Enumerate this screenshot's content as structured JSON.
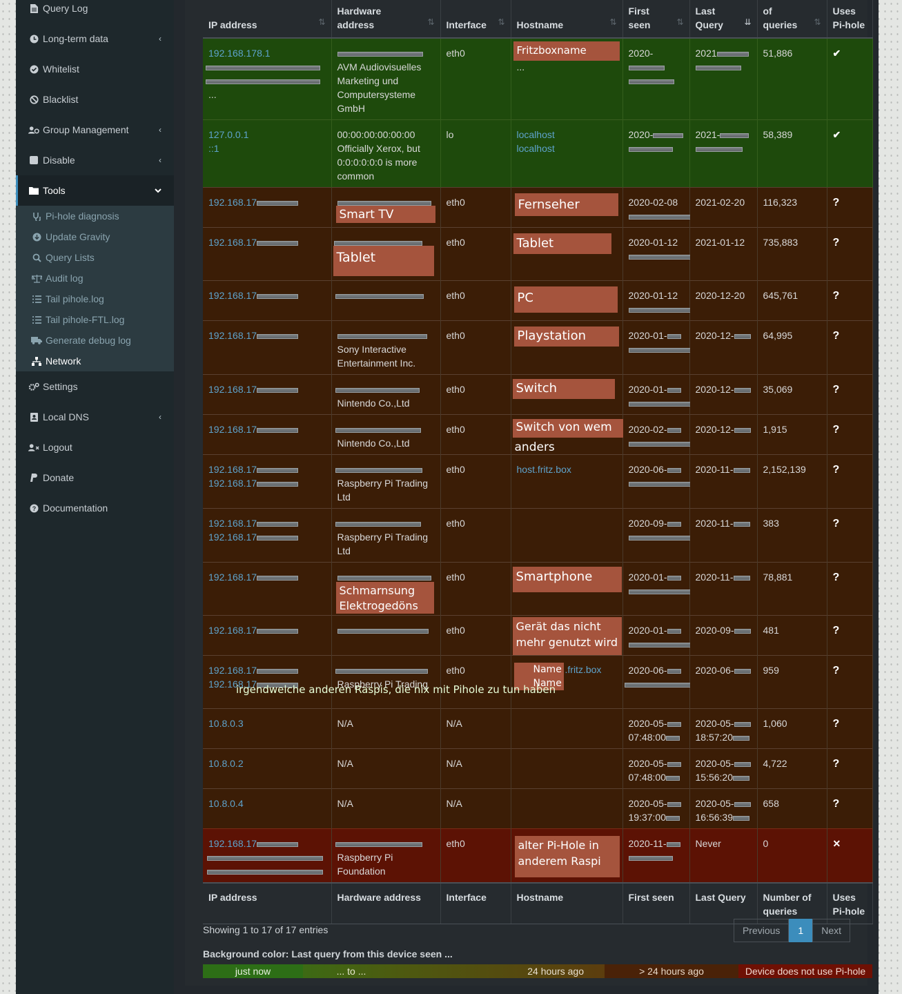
{
  "sidebar": {
    "items": [
      {
        "label": "Query Log",
        "icon": "file-icon"
      },
      {
        "label": "Long-term data",
        "icon": "history-icon",
        "chevron": "‹"
      },
      {
        "label": "Whitelist",
        "icon": "check-circle-icon"
      },
      {
        "label": "Blacklist",
        "icon": "ban-icon"
      },
      {
        "label": "Group Management",
        "icon": "users-cog-icon",
        "chevron": "‹"
      },
      {
        "label": "Disable",
        "icon": "stop-icon",
        "chevron": "‹"
      },
      {
        "label": "Tools",
        "icon": "folder-open-icon",
        "chevron": "⌄"
      },
      {
        "label": "Settings",
        "icon": "cogs-icon"
      },
      {
        "label": "Local DNS",
        "icon": "address-book-icon",
        "chevron": "‹"
      },
      {
        "label": "Logout",
        "icon": "user-times-icon"
      },
      {
        "label": "Donate",
        "icon": "paypal-icon"
      },
      {
        "label": "Documentation",
        "icon": "question-circle-icon"
      }
    ],
    "tools_sub": [
      {
        "label": "Pi-hole diagnosis",
        "icon": "stethoscope-icon"
      },
      {
        "label": "Update Gravity",
        "icon": "arrow-circle-down-icon"
      },
      {
        "label": "Query Lists",
        "icon": "search-icon"
      },
      {
        "label": "Audit log",
        "icon": "balance-scale-icon"
      },
      {
        "label": "Tail pihole.log",
        "icon": "list-icon"
      },
      {
        "label": "Tail pihole-FTL.log",
        "icon": "list-icon"
      },
      {
        "label": "Generate debug log",
        "icon": "ambulance-icon"
      },
      {
        "label": "Network",
        "icon": "network-icon"
      }
    ]
  },
  "table": {
    "headers": [
      "IP address",
      "Hardware address",
      "Interface",
      "Hostname",
      "First seen",
      "Last Query",
      "of queries",
      "Uses Pi-hole"
    ],
    "header_first_lines": [
      "",
      "Hardware",
      "",
      "",
      "First",
      "Last",
      "of",
      "Uses"
    ],
    "header_second_lines": [
      "IP address",
      "address",
      "Interface",
      "Hostname",
      "seen",
      "Query",
      "queries",
      "Pi-hole"
    ],
    "footer": [
      "IP address",
      "Hardware address",
      "Interface",
      "Hostname",
      "First seen",
      "Last Query",
      "Number of queries",
      "Uses Pi-hole"
    ],
    "rows": [
      {
        "ip": "192.168.178.1",
        "ip2": "...",
        "vendor": "AVM Audiovisuelles Marketing und Computersysteme GmbH",
        "iface": "eth0",
        "host": "...",
        "host_label": "Fritzboxname",
        "first": "2020-",
        "last": "2021",
        "queries": "51,886",
        "uses": "✔"
      },
      {
        "ip": "127.0.0.1",
        "ip2": "::1",
        "hw": "00:00:00:00:00:00",
        "vendor": "Officially Xerox, but 0:0:0:0:0:0 is more common",
        "iface": "lo",
        "host": "localhost",
        "host2": "localhost",
        "first": "2020-",
        "last": "2021-",
        "queries": "58,389",
        "uses": "✔"
      },
      {
        "ip": "192.168.17",
        "hw_label": "Smart TV",
        "iface": "eth0",
        "host_label": "Fernseher",
        "first": "2020-02-08",
        "last": "2021-02-20",
        "queries": "116,323",
        "uses": "?"
      },
      {
        "ip": "192.168.17",
        "hw_label": "Tablet",
        "iface": "eth0",
        "host_label": "Tablet",
        "first": "2020-01-12",
        "last": "2021-01-12",
        "queries": "735,883",
        "uses": "?"
      },
      {
        "ip": "192.168.17",
        "iface": "eth0",
        "host_label": "PC",
        "first": "2020-01-12",
        "last": "2020-12-20",
        "queries": "645,761",
        "uses": "?"
      },
      {
        "ip": "192.168.17",
        "vendor": "Sony Interactive Entertainment Inc.",
        "iface": "eth0",
        "host_label": "Playstation",
        "first": "2020-01-",
        "last": "2020-12-",
        "queries": "64,995",
        "uses": "?"
      },
      {
        "ip": "192.168.17",
        "vendor": "Nintendo Co.,Ltd",
        "iface": "eth0",
        "host_label": "Switch",
        "first": "2020-01-",
        "last": "2020-12-",
        "queries": "35,069",
        "uses": "?"
      },
      {
        "ip": "192.168.17",
        "vendor": "Nintendo Co.,Ltd",
        "iface": "eth0",
        "host_label": "Switch von wem",
        "host_label2": "anders",
        "first": "2020-02-",
        "last": "2020-12-",
        "queries": "1,915",
        "uses": "?"
      },
      {
        "ip": "192.168.17",
        "ip2": "192.168.17",
        "vendor": "Raspberry Pi Trading Ltd",
        "iface": "eth0",
        "host": "host.fritz.box",
        "first": "2020-06-",
        "last": "2020-11-",
        "queries": "2,152,139",
        "uses": "?"
      },
      {
        "ip": "192.168.17",
        "ip2": "192.168.17",
        "vendor": "Raspberry Pi Trading Ltd",
        "iface": "eth0",
        "first": "2020-09-",
        "last": "2020-11-",
        "queries": "383",
        "uses": "?"
      },
      {
        "ip": "192.168.17",
        "hw_label": "Schmarnsung Elektrogedöns",
        "iface": "eth0",
        "host_label": "Smartphone",
        "first": "2020-01-",
        "last": "2020-11-",
        "queries": "78,881",
        "uses": "?"
      },
      {
        "ip": "192.168.17",
        "iface": "eth0",
        "host_label": "Gerät das nicht mehr genutzt wird",
        "first": "2020-01-",
        "last": "2020-09-",
        "queries": "481",
        "uses": "?"
      },
      {
        "ip": "192.168.17",
        "ip2": "192.168.17",
        "vendor": "Raspberry Pi Trading",
        "iface": "eth0",
        "host": ".fritz.box",
        "host_label": "Name",
        "host_label2": "Name",
        "first": "2020-06-",
        "last": "2020-06-",
        "queries": "959",
        "uses": "?"
      },
      {
        "ip": "10.8.0.3",
        "hw": "N/A",
        "iface": "N/A",
        "first": "2020-05-",
        "first2": "07:48:00",
        "last": "2020-05-",
        "last2": "18:57:20",
        "queries": "1,060",
        "uses": "?"
      },
      {
        "ip": "10.8.0.2",
        "hw": "N/A",
        "iface": "N/A",
        "first": "2020-05-",
        "first2": "07:48:00",
        "last": "2020-05-",
        "last2": "15:56:20",
        "queries": "4,722",
        "uses": "?"
      },
      {
        "ip": "10.8.0.4",
        "hw": "N/A",
        "iface": "N/A",
        "first": "2020-05-",
        "first2": "19:37:00",
        "last": "2020-05-",
        "last2": "16:56:39",
        "queries": "658",
        "uses": "?"
      },
      {
        "ip": "192.168.17",
        "vendor": "Raspberry Pi Foundation",
        "iface": "eth0",
        "host_label": "alter Pi-Hole in anderem Raspi",
        "first": "2020-11-",
        "last": "Never",
        "queries": "0",
        "uses": "✕"
      }
    ],
    "overlay_note": "irgendwelche anderen Raspis, die nix mit Pihole zu tun haben"
  },
  "info": "Showing 1 to 17 of 17 entries",
  "pager": {
    "previous": "Previous",
    "current": "1",
    "next": "Next"
  },
  "legend": {
    "title": "Background color: Last query from this device seen ...",
    "items": [
      "just now",
      "... to ...",
      "24 hours ago",
      "> 24 hours ago",
      "Device does not use Pi-hole"
    ]
  },
  "colors": {
    "accent": "#3c8dbc",
    "recent": "#1e4a0c",
    "old": "#3b1d06",
    "unused": "#5c1204",
    "label": "#a5543d"
  }
}
